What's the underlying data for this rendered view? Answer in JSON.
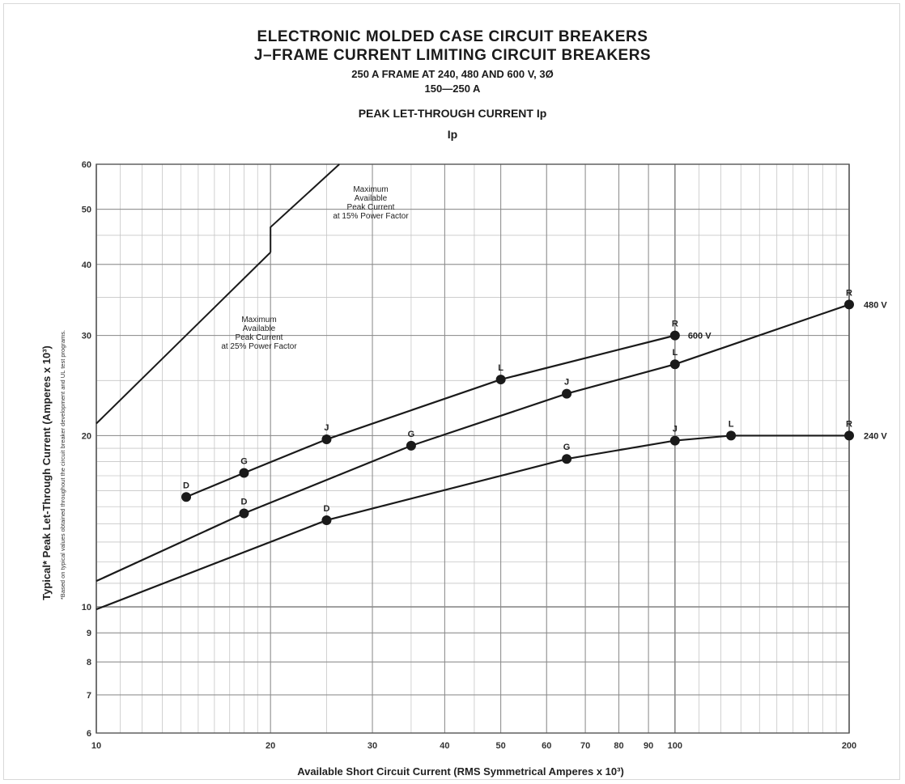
{
  "header": {
    "title": "ELECTRONIC MOLDED CASE CIRCUIT BREAKERS",
    "subtitle": "J–FRAME CURRENT LIMITING CIRCUIT BREAKERS",
    "frame": "250 A FRAME AT 240, 480 AND 600 V, 3Ø",
    "range": "150—250 A",
    "chart_title": "PEAK LET-THROUGH CURRENT Ip",
    "ip_label": "Ip"
  },
  "chart_data": {
    "type": "line",
    "title": "PEAK LET-THROUGH CURRENT Ip",
    "xlabel": "Available Short Circuit Current (RMS Symmetrical Amperes x 10³)",
    "ylabel": "Typical* Peak Let-Through Current (Amperes x 10³)",
    "footnote": "*Based on typical values obtained throughout the circuit breaker development and UL test programs.",
    "x_scale": "log",
    "y_scale": "log",
    "xlim": [
      10,
      200
    ],
    "ylim": [
      6,
      60
    ],
    "x_ticks": [
      10,
      20,
      30,
      40,
      50,
      60,
      70,
      80,
      90,
      100,
      200
    ],
    "y_ticks": [
      6,
      7,
      8,
      9,
      10,
      20,
      30,
      40,
      50,
      60
    ],
    "grid": true,
    "series": [
      {
        "name": "600 V",
        "points": [
          {
            "x": 14.3,
            "y": 15.6,
            "label": "D"
          },
          {
            "x": 18,
            "y": 17.2,
            "label": "G"
          },
          {
            "x": 25,
            "y": 19.7,
            "label": "J"
          },
          {
            "x": 50,
            "y": 25.1,
            "label": "L"
          },
          {
            "x": 100,
            "y": 30,
            "label": "R"
          }
        ]
      },
      {
        "name": "480 V",
        "points": [
          {
            "x": 10,
            "y": 11.1
          },
          {
            "x": 18,
            "y": 14.6,
            "label": "D"
          },
          {
            "x": 35,
            "y": 19.2,
            "label": "G"
          },
          {
            "x": 65,
            "y": 23.7,
            "label": "J"
          },
          {
            "x": 100,
            "y": 26.7,
            "label": "L"
          },
          {
            "x": 200,
            "y": 34,
            "label": "R"
          }
        ]
      },
      {
        "name": "240 V",
        "points": [
          {
            "x": 10,
            "y": 9.9
          },
          {
            "x": 25,
            "y": 14.2,
            "label": "D"
          },
          {
            "x": 65,
            "y": 18.2,
            "label": "G"
          },
          {
            "x": 100,
            "y": 19.6,
            "label": "J"
          },
          {
            "x": 125,
            "y": 20,
            "label": "L"
          },
          {
            "x": 200,
            "y": 20,
            "label": "R"
          }
        ]
      }
    ],
    "reference_lines": [
      {
        "label": "Maximum Available Peak Current at 25% Power Factor",
        "points": [
          {
            "x": 10,
            "y": 21
          },
          {
            "x": 20,
            "y": 42
          }
        ]
      },
      {
        "label": "Maximum Available Peak Current at 15% Power Factor",
        "points": [
          {
            "x": 20,
            "y": 42
          },
          {
            "x": 20,
            "y": 46.5
          },
          {
            "x": 26.3,
            "y": 60
          }
        ]
      }
    ]
  }
}
